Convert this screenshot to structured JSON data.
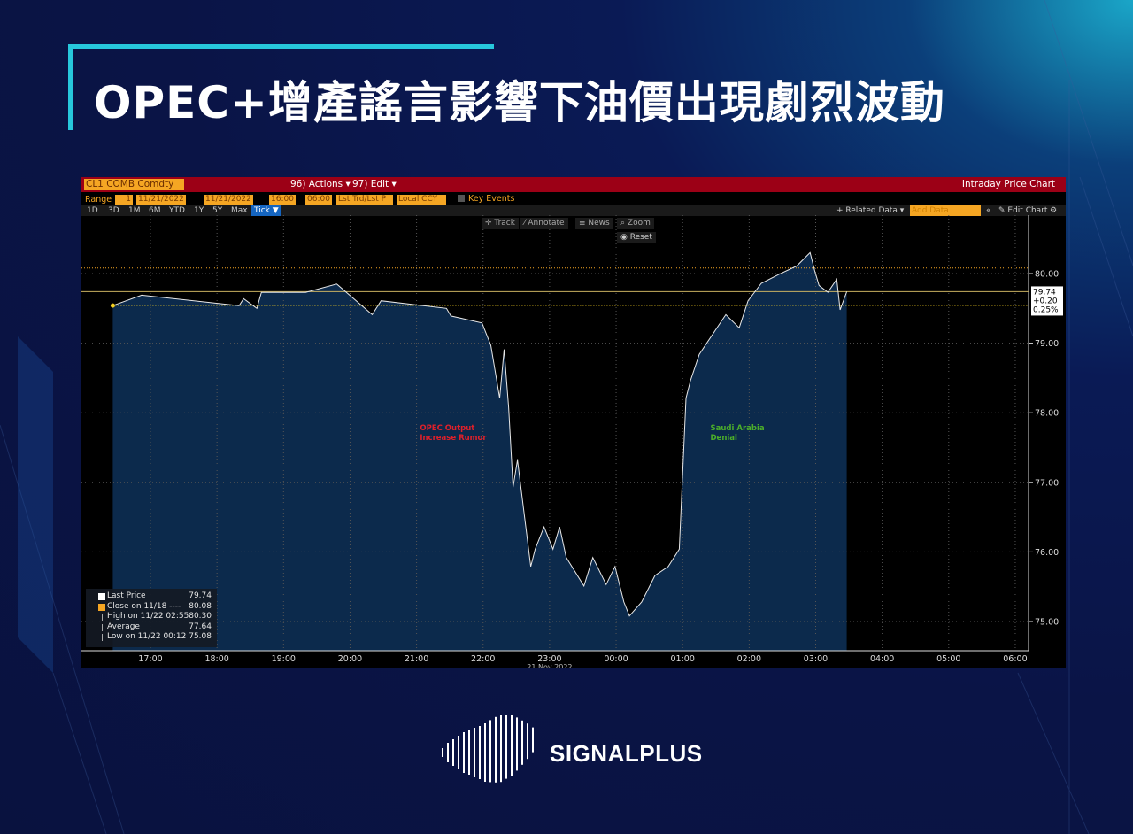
{
  "title": "OPEC+增產謠言影響下油價出現劇烈波動",
  "terminal": {
    "ticker": "CL1 COMB Comdty",
    "actions_label": "96) Actions ▾",
    "edit_label": "97) Edit ▾",
    "chart_name": "Intraday Price Chart",
    "range_label": "Range",
    "range_value": "1",
    "date_from": "11/21/2022",
    "date_to": "11/21/2022",
    "time_from": "16:00",
    "time_to": "06:00",
    "price_type": "Lst Trd/Lst P",
    "currency": "Local CCY",
    "key_events": "Key Events",
    "periods": [
      "1D",
      "3D",
      "1M",
      "6M",
      "YTD",
      "1Y",
      "5Y",
      "Max",
      "Tick ▼"
    ],
    "related_data": "+ Related Data ▾",
    "add_data": "Add Data",
    "edit_chart": "✎ Edit Chart",
    "tools": {
      "track": "Track",
      "annotate": "Annotate",
      "news": "News",
      "zoom": "Zoom",
      "reset": "Reset"
    }
  },
  "chart_data": {
    "type": "line",
    "x_ticks": [
      "17:00",
      "18:00",
      "19:00",
      "20:00",
      "21:00",
      "22:00",
      "23:00",
      "00:00",
      "01:00",
      "02:00",
      "03:00",
      "04:00",
      "05:00",
      "06:00"
    ],
    "date_label": "21 Nov 2022",
    "y_ticks": [
      "80.00",
      "79.00",
      "78.00",
      "77.00",
      "76.00",
      "75.00"
    ],
    "ylim": [
      74.6,
      81.2
    ],
    "y_axis": "right",
    "grid": true,
    "series": [
      {
        "name": "Last Price",
        "color": "#e8e8e8",
        "fill": "#0c2a4c",
        "points": [
          [
            "16:26",
            79.54
          ],
          [
            "16:52",
            79.69
          ],
          [
            "18:20",
            79.54
          ],
          [
            "18:24",
            79.64
          ],
          [
            "18:36",
            79.5
          ],
          [
            "18:40",
            79.73
          ],
          [
            "19:20",
            79.73
          ],
          [
            "19:48",
            79.85
          ],
          [
            "20:20",
            79.41
          ],
          [
            "20:28",
            79.61
          ],
          [
            "21:27",
            79.5
          ],
          [
            "21:31",
            79.39
          ],
          [
            "21:59",
            79.29
          ],
          [
            "22:07",
            78.97
          ],
          [
            "22:15",
            78.21
          ],
          [
            "22:19",
            78.91
          ],
          [
            "22:23",
            78.08
          ],
          [
            "22:27",
            76.93
          ],
          [
            "22:31",
            77.32
          ],
          [
            "22:39",
            76.3
          ],
          [
            "22:43",
            75.79
          ],
          [
            "22:47",
            76.04
          ],
          [
            "22:55",
            76.36
          ],
          [
            "23:03",
            76.04
          ],
          [
            "23:09",
            76.36
          ],
          [
            "23:15",
            75.92
          ],
          [
            "23:31",
            75.51
          ],
          [
            "23:39",
            75.92
          ],
          [
            "23:51",
            75.53
          ],
          [
            "23:59",
            75.79
          ],
          [
            "00:07",
            75.28
          ],
          [
            "00:12",
            75.08
          ],
          [
            "00:23",
            75.28
          ],
          [
            "00:35",
            75.66
          ],
          [
            "00:47",
            75.79
          ],
          [
            "00:57",
            76.04
          ],
          [
            "01:03",
            78.21
          ],
          [
            "01:07",
            78.46
          ],
          [
            "01:15",
            78.84
          ],
          [
            "01:23",
            79.03
          ],
          [
            "01:39",
            79.41
          ],
          [
            "01:51",
            79.22
          ],
          [
            "01:59",
            79.61
          ],
          [
            "02:11",
            79.86
          ],
          [
            "02:27",
            79.99
          ],
          [
            "02:43",
            80.11
          ],
          [
            "02:55",
            80.3
          ],
          [
            "02:59",
            80.05
          ],
          [
            "03:03",
            79.83
          ],
          [
            "03:11",
            79.73
          ],
          [
            "03:19",
            79.92
          ],
          [
            "03:22",
            79.48
          ],
          [
            "03:28",
            79.74
          ]
        ]
      }
    ],
    "reference_lines": [
      {
        "label": "Close on 11/18",
        "value": 80.08,
        "color": "#f5a623"
      },
      {
        "value": 79.54,
        "color": "#f5d020"
      },
      {
        "value": 79.74,
        "color": "#c8b060"
      }
    ],
    "last_price_box": {
      "price": "79.74",
      "change": "+0.20",
      "pct": "0.25%"
    },
    "annotations": [
      {
        "text": [
          "OPEC Output",
          "Increase Rumor"
        ],
        "time": "21:03",
        "price": 77.75,
        "color": "#e0202a"
      },
      {
        "text": [
          "Saudi Arabia",
          "Denial"
        ],
        "time": "01:25",
        "price": 77.75,
        "color": "#4caf2a"
      }
    ],
    "legend": [
      {
        "label": "Last Price",
        "value": "79.74",
        "color": "#ffffff"
      },
      {
        "label": "Close on 11/18 ----",
        "value": "80.08",
        "color": "#f5a623"
      },
      {
        "label": "High on 11/22 02:55",
        "value": "80.30",
        "color": ""
      },
      {
        "label": "Average",
        "value": "77.64",
        "color": ""
      },
      {
        "label": "Low on 11/22 00:12",
        "value": "75.08",
        "color": ""
      }
    ]
  },
  "brand": {
    "name": "SIGNALPLUS"
  }
}
